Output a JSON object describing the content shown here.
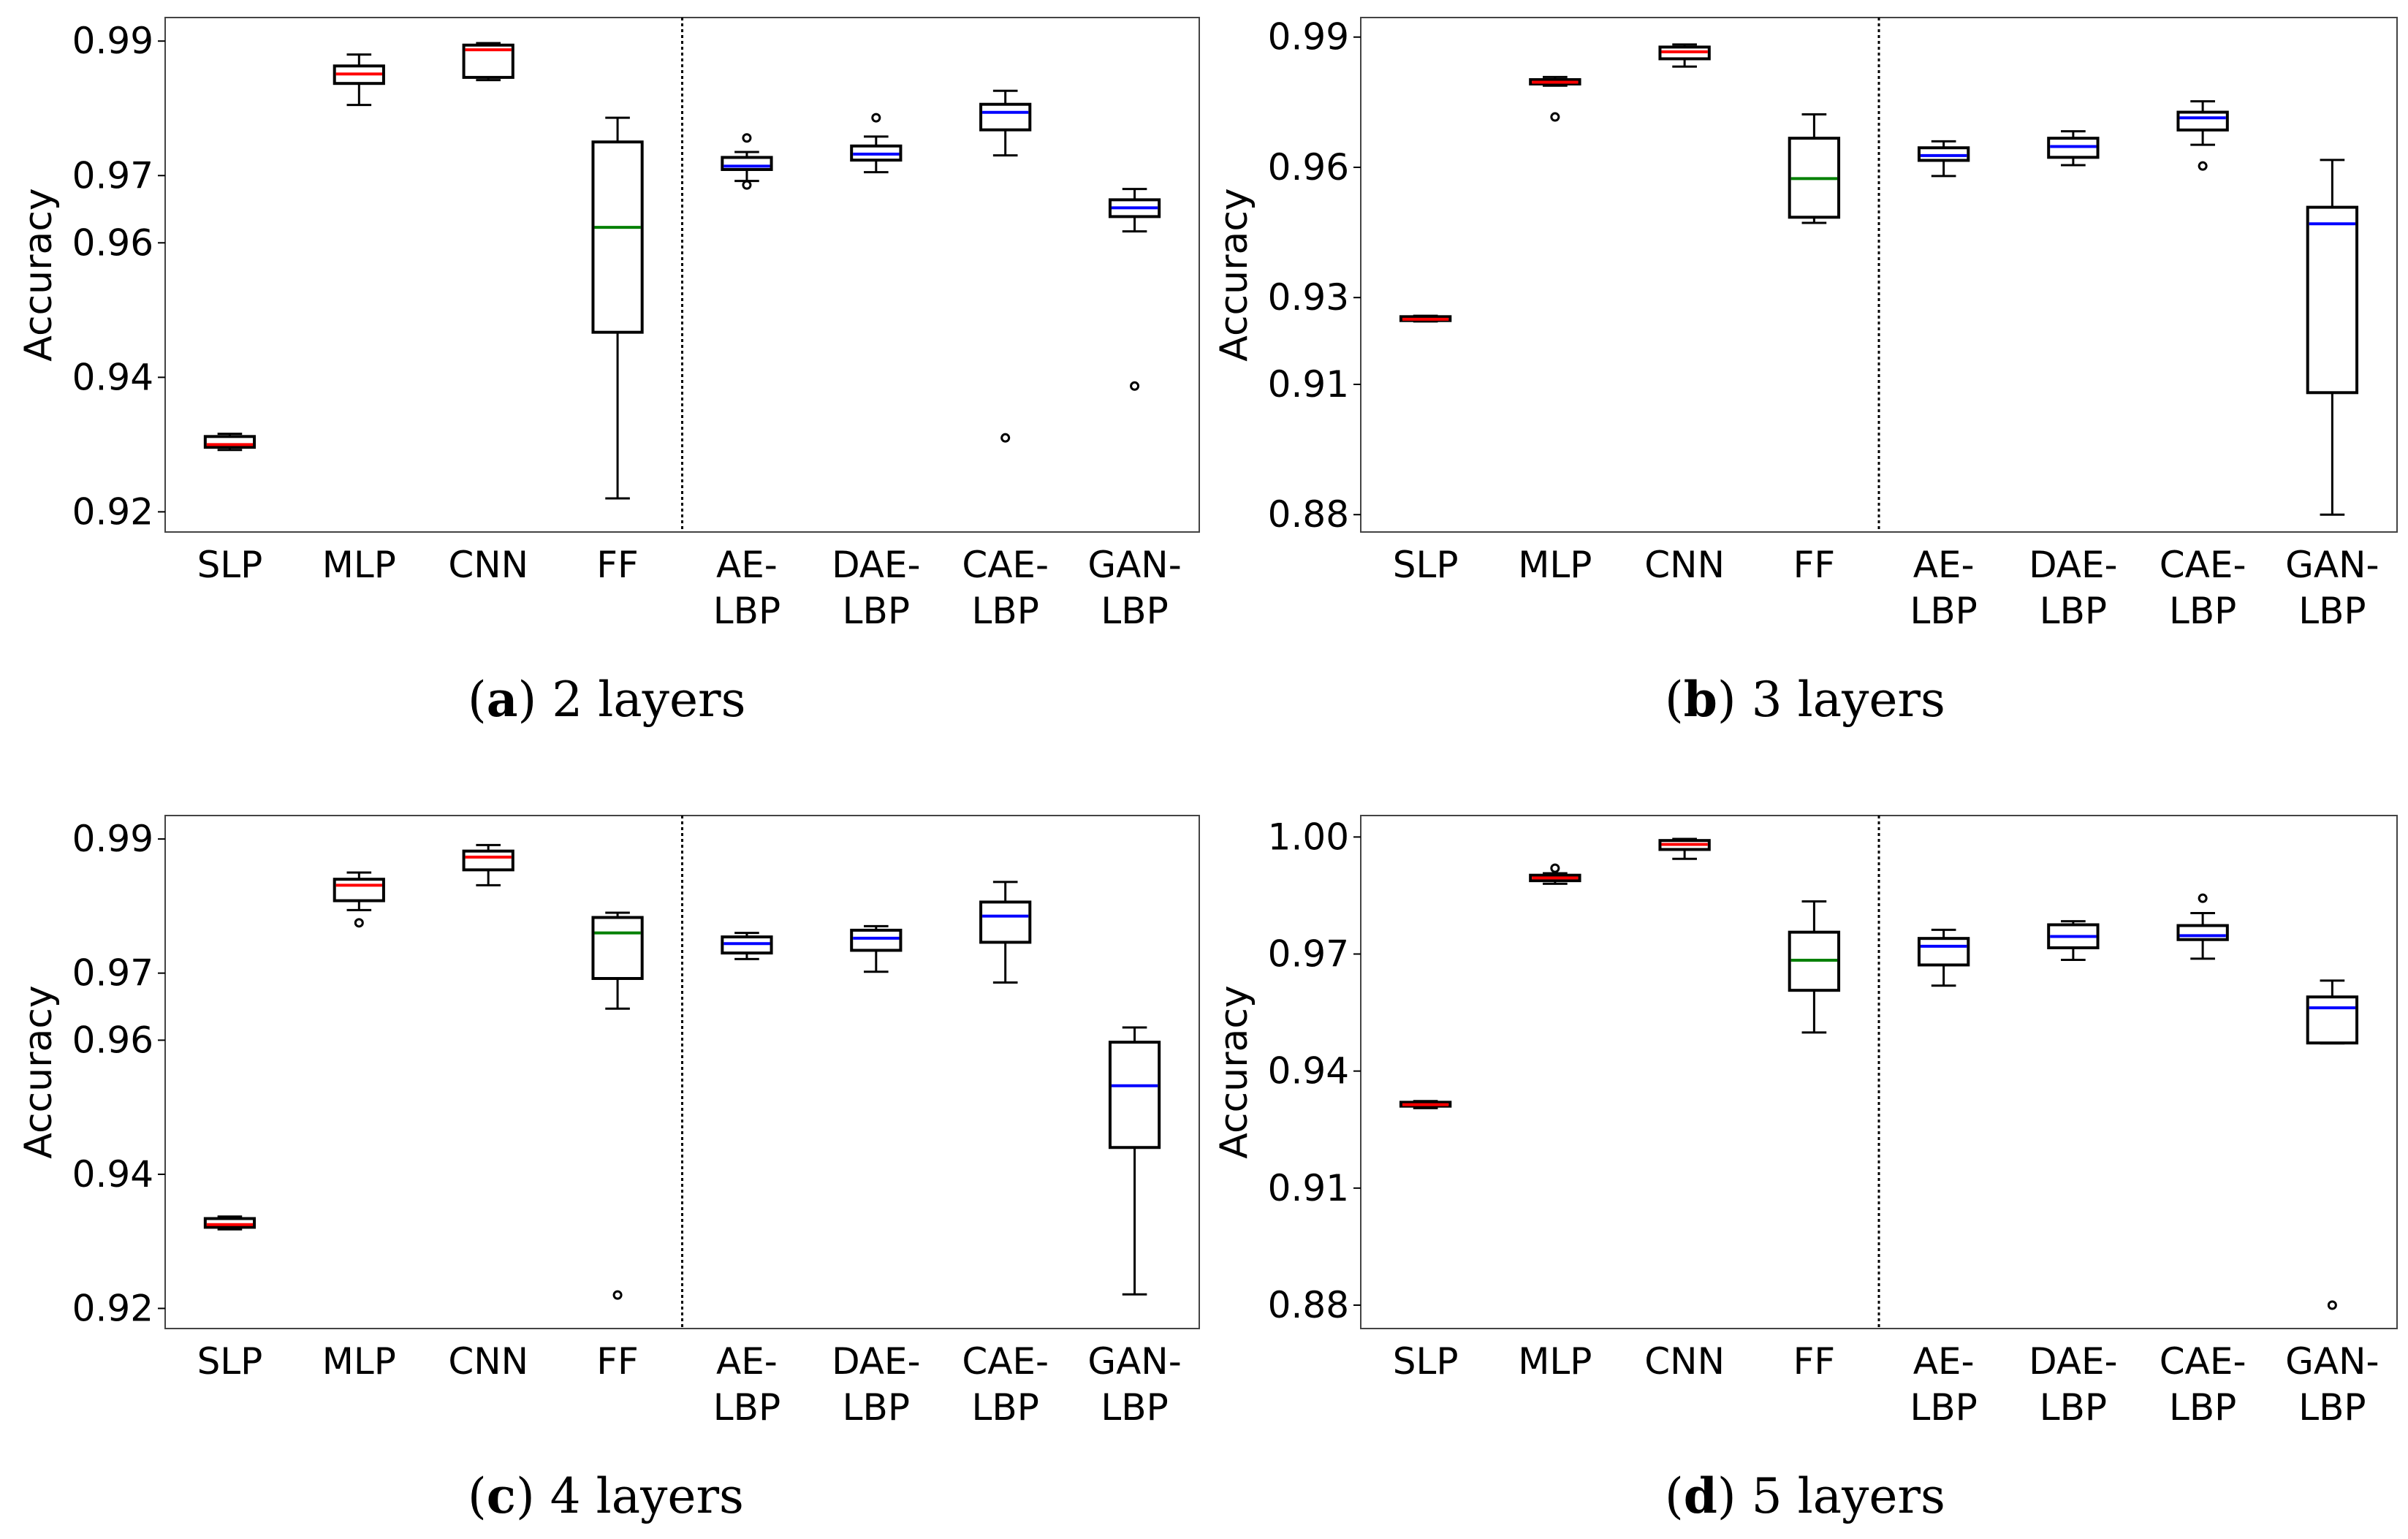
{
  "colors": {
    "baseline_median": "#ff0000",
    "ff_median": "#008000",
    "lbp_median": "#0000ff"
  },
  "chart_data": [
    {
      "type": "box",
      "caption_letter": "a",
      "caption_text": "2 layers",
      "ylabel": "Accuracy",
      "ylim": [
        0.917,
        0.9935
      ],
      "yticks": [
        0.92,
        0.94,
        0.96,
        0.97,
        0.99
      ],
      "ytick_labels": [
        "0.92",
        "0.94",
        "0.96",
        "0.97",
        "0.99"
      ],
      "categories": [
        {
          "line1": "SLP",
          "line2": ""
        },
        {
          "line1": "MLP",
          "line2": ""
        },
        {
          "line1": "CNN",
          "line2": ""
        },
        {
          "line1": "FF",
          "line2": ""
        },
        {
          "line1": "AE-",
          "line2": "LBP"
        },
        {
          "line1": "DAE-",
          "line2": "LBP"
        },
        {
          "line1": "CAE-",
          "line2": "LBP"
        },
        {
          "line1": "GAN-",
          "line2": "LBP"
        }
      ],
      "divider_after": 4,
      "boxes": [
        {
          "whislo": 0.9292,
          "q1": 0.9296,
          "med": 0.93,
          "q3": 0.9312,
          "whishi": 0.9316,
          "fliers": [],
          "color": "baseline"
        },
        {
          "whislo": 0.9805,
          "q1": 0.9837,
          "med": 0.9851,
          "q3": 0.9863,
          "whishi": 0.988,
          "fliers": [],
          "color": "baseline"
        },
        {
          "whislo": 0.9842,
          "q1": 0.9846,
          "med": 0.9887,
          "q3": 0.9894,
          "whishi": 0.9897,
          "fliers": [],
          "color": "baseline"
        },
        {
          "whislo": 0.922,
          "q1": 0.9467,
          "med": 0.9623,
          "q3": 0.975,
          "whishi": 0.9786,
          "fliers": [],
          "color": "ff"
        },
        {
          "whislo": 0.9692,
          "q1": 0.9709,
          "med": 0.9714,
          "q3": 0.9727,
          "whishi": 0.9735,
          "fliers": [
            0.9756,
            0.9686
          ],
          "color": "lbp"
        },
        {
          "whislo": 0.9705,
          "q1": 0.9723,
          "med": 0.9732,
          "q3": 0.9744,
          "whishi": 0.9758,
          "fliers": [
            0.9786
          ],
          "color": "lbp"
        },
        {
          "whislo": 0.973,
          "q1": 0.9768,
          "med": 0.9794,
          "q3": 0.9806,
          "whishi": 0.9826,
          "fliers": [
            0.931
          ],
          "color": "lbp"
        },
        {
          "whislo": 0.9617,
          "q1": 0.9639,
          "med": 0.9652,
          "q3": 0.9664,
          "whishi": 0.968,
          "fliers": [
            0.9387
          ],
          "color": "lbp"
        }
      ]
    },
    {
      "type": "box",
      "caption_letter": "b",
      "caption_text": "3 layers",
      "ylabel": "Accuracy",
      "ylim": [
        0.876,
        0.9945
      ],
      "yticks": [
        0.88,
        0.91,
        0.93,
        0.96,
        0.99
      ],
      "ytick_labels": [
        "0.88",
        "0.91",
        "0.93",
        "0.96",
        "0.99"
      ],
      "categories": [
        {
          "line1": "SLP",
          "line2": ""
        },
        {
          "line1": "MLP",
          "line2": ""
        },
        {
          "line1": "CNN",
          "line2": ""
        },
        {
          "line1": "FF",
          "line2": ""
        },
        {
          "line1": "AE-",
          "line2": "LBP"
        },
        {
          "line1": "DAE-",
          "line2": "LBP"
        },
        {
          "line1": "CAE-",
          "line2": "LBP"
        },
        {
          "line1": "GAN-",
          "line2": "LBP"
        }
      ],
      "divider_after": 4,
      "boxes": [
        {
          "whislo": 0.9245,
          "q1": 0.9247,
          "med": 0.925,
          "q3": 0.9256,
          "whishi": 0.9258,
          "fliers": [],
          "color": "baseline"
        },
        {
          "whislo": 0.9788,
          "q1": 0.9792,
          "med": 0.9796,
          "q3": 0.9802,
          "whishi": 0.9808,
          "fliers": [
            0.9716
          ],
          "color": "baseline"
        },
        {
          "whislo": 0.9832,
          "q1": 0.985,
          "med": 0.9866,
          "q3": 0.9877,
          "whishi": 0.9883,
          "fliers": [],
          "color": "baseline"
        },
        {
          "whislo": 0.9472,
          "q1": 0.9485,
          "med": 0.9574,
          "q3": 0.9667,
          "whishi": 0.9722,
          "fliers": [],
          "color": "ff"
        },
        {
          "whislo": 0.958,
          "q1": 0.9616,
          "med": 0.9627,
          "q3": 0.9645,
          "whishi": 0.966,
          "fliers": [],
          "color": "lbp"
        },
        {
          "whislo": 0.9605,
          "q1": 0.9623,
          "med": 0.9648,
          "q3": 0.9667,
          "whishi": 0.9683,
          "fliers": [],
          "color": "lbp"
        },
        {
          "whislo": 0.9652,
          "q1": 0.9686,
          "med": 0.9714,
          "q3": 0.9727,
          "whishi": 0.9752,
          "fliers": [
            0.9603
          ],
          "color": "lbp"
        },
        {
          "whislo": 0.88,
          "q1": 0.9081,
          "med": 0.947,
          "q3": 0.9508,
          "whishi": 0.9617,
          "fliers": [],
          "color": "lbp"
        }
      ]
    },
    {
      "type": "box",
      "caption_letter": "c",
      "caption_text": "4 layers",
      "ylabel": "Accuracy",
      "ylim": [
        0.917,
        0.9935
      ],
      "yticks": [
        0.92,
        0.94,
        0.96,
        0.97,
        0.99
      ],
      "ytick_labels": [
        "0.92",
        "0.94",
        "0.96",
        "0.97",
        "0.99"
      ],
      "categories": [
        {
          "line1": "SLP",
          "line2": ""
        },
        {
          "line1": "MLP",
          "line2": ""
        },
        {
          "line1": "CNN",
          "line2": ""
        },
        {
          "line1": "FF",
          "line2": ""
        },
        {
          "line1": "AE-",
          "line2": "LBP"
        },
        {
          "line1": "DAE-",
          "line2": "LBP"
        },
        {
          "line1": "CAE-",
          "line2": "LBP"
        },
        {
          "line1": "GAN-",
          "line2": "LBP"
        }
      ],
      "divider_after": 4,
      "boxes": [
        {
          "whislo": 0.9318,
          "q1": 0.9321,
          "med": 0.9325,
          "q3": 0.9334,
          "whishi": 0.9337,
          "fliers": [],
          "color": "baseline"
        },
        {
          "whislo": 0.9794,
          "q1": 0.9808,
          "med": 0.9831,
          "q3": 0.984,
          "whishi": 0.985,
          "fliers": [
            0.9775
          ],
          "color": "baseline"
        },
        {
          "whislo": 0.9831,
          "q1": 0.9854,
          "med": 0.9873,
          "q3": 0.9882,
          "whishi": 0.9891,
          "fliers": [],
          "color": "baseline"
        },
        {
          "whislo": 0.9647,
          "q1": 0.9692,
          "med": 0.976,
          "q3": 0.9783,
          "whishi": 0.979,
          "fliers": [
            0.922
          ],
          "color": "ff"
        },
        {
          "whislo": 0.9721,
          "q1": 0.973,
          "med": 0.9744,
          "q3": 0.9754,
          "whishi": 0.976,
          "fliers": [],
          "color": "lbp"
        },
        {
          "whislo": 0.9702,
          "q1": 0.9734,
          "med": 0.9752,
          "q3": 0.9764,
          "whishi": 0.977,
          "fliers": [],
          "color": "lbp"
        },
        {
          "whislo": 0.9686,
          "q1": 0.9746,
          "med": 0.9785,
          "q3": 0.9806,
          "whishi": 0.9836,
          "fliers": [],
          "color": "lbp"
        },
        {
          "whislo": 0.9221,
          "q1": 0.944,
          "med": 0.9532,
          "q3": 0.9597,
          "whishi": 0.9619,
          "fliers": [],
          "color": "lbp"
        }
      ]
    },
    {
      "type": "box",
      "caption_letter": "d",
      "caption_text": "5 layers",
      "ylabel": "Accuracy",
      "ylim": [
        0.874,
        1.0055
      ],
      "yticks": [
        0.88,
        0.91,
        0.94,
        0.97,
        1.0
      ],
      "ytick_labels": [
        "0.88",
        "0.91",
        "0.94",
        "0.97",
        "1.00"
      ],
      "categories": [
        {
          "line1": "SLP",
          "line2": ""
        },
        {
          "line1": "MLP",
          "line2": ""
        },
        {
          "line1": "CNN",
          "line2": ""
        },
        {
          "line1": "FF",
          "line2": ""
        },
        {
          "line1": "AE-",
          "line2": "LBP"
        },
        {
          "line1": "DAE-",
          "line2": "LBP"
        },
        {
          "line1": "CAE-",
          "line2": "LBP"
        },
        {
          "line1": "GAN-",
          "line2": "LBP"
        }
      ],
      "divider_after": 4,
      "boxes": [
        {
          "whislo": 0.9305,
          "q1": 0.931,
          "med": 0.9314,
          "q3": 0.932,
          "whishi": 0.9323,
          "fliers": [],
          "color": "baseline"
        },
        {
          "whislo": 0.988,
          "q1": 0.9888,
          "med": 0.9895,
          "q3": 0.9902,
          "whishi": 0.9907,
          "fliers": [
            0.992
          ],
          "color": "baseline"
        },
        {
          "whislo": 0.9944,
          "q1": 0.9968,
          "med": 0.9981,
          "q3": 0.9991,
          "whishi": 0.9995,
          "fliers": [],
          "color": "baseline"
        },
        {
          "whislo": 0.9499,
          "q1": 0.9607,
          "med": 0.9684,
          "q3": 0.9756,
          "whishi": 0.9835,
          "fliers": [],
          "color": "ff"
        },
        {
          "whislo": 0.9619,
          "q1": 0.9672,
          "med": 0.972,
          "q3": 0.974,
          "whishi": 0.9762,
          "fliers": [],
          "color": "lbp"
        },
        {
          "whislo": 0.9685,
          "q1": 0.9716,
          "med": 0.9745,
          "q3": 0.9775,
          "whishi": 0.9784,
          "fliers": [],
          "color": "lbp"
        },
        {
          "whislo": 0.9688,
          "q1": 0.9737,
          "med": 0.9747,
          "q3": 0.9773,
          "whishi": 0.9805,
          "fliers": [
            0.9843
          ],
          "color": "lbp"
        },
        {
          "whislo": 0.9471,
          "q1": 0.9472,
          "med": 0.9562,
          "q3": 0.959,
          "whishi": 0.9632,
          "fliers": [
            0.88
          ],
          "color": "lbp"
        }
      ]
    }
  ]
}
